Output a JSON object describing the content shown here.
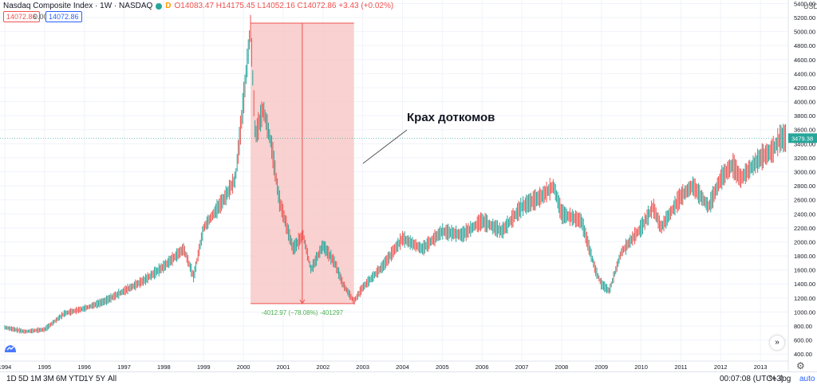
{
  "header": {
    "symbol": "Nasdaq Composite Index · 1W · NASDAQ",
    "badge_d": "D",
    "ohlc": "O14083.47 H14175.45 L14052.16 C14072.86 +3.43 (+0.02%)",
    "sell_price": "14072.86",
    "spread": "0.00",
    "buy_price": "14072.86"
  },
  "annotation": {
    "text": "Крах доткомов",
    "measure": "-4012.97 (−78.08%) -401297"
  },
  "price_label": "3479.38",
  "currency": "USD",
  "bottom": {
    "ranges": [
      "1D",
      "5D",
      "1M",
      "3M",
      "6M",
      "YTD",
      "1Y",
      "5Y",
      "All"
    ],
    "time": "00:07:08 (UTC+3)",
    "pct": "%",
    "log": "log",
    "auto": "auto"
  },
  "colors": {
    "up": "#26a69a",
    "down": "#ef5350",
    "zone_fill": "#f7c9c8",
    "zone_line": "#ef5350",
    "price_tag": "#26a69a",
    "measure_text": "#4caf50",
    "grid": "#f0f3fa"
  },
  "chart_data": {
    "type": "line",
    "title": "Nasdaq Composite Index · 1W · NASDAQ",
    "x_ticks": [
      "1994",
      "1995",
      "1996",
      "1997",
      "1998",
      "1999",
      "2000",
      "2001",
      "2002",
      "2003",
      "2004",
      "2005",
      "2006",
      "2007",
      "2008",
      "2009",
      "2010",
      "2011",
      "2012",
      "2013"
    ],
    "y_ticks": [
      400,
      600,
      800,
      1000,
      1200,
      1400,
      1600,
      1800,
      2000,
      2200,
      2400,
      2600,
      2800,
      3000,
      3200,
      3400,
      3600,
      3800,
      4000,
      4200,
      4400,
      4600,
      4800,
      5000,
      5200,
      5400
    ],
    "ylim": [
      300,
      5450
    ],
    "series": [
      {
        "x": [
          1994.0,
          1994.5,
          1995.0,
          1995.5,
          1996.0,
          1996.5,
          1997.0,
          1997.5,
          1998.0,
          1998.5,
          1998.75,
          1999.0,
          1999.5,
          1999.8,
          2000.0,
          2000.18,
          2000.3,
          2000.5,
          2000.7,
          2000.9,
          2001.0,
          2001.25,
          2001.5,
          2001.7,
          2002.0,
          2002.3,
          2002.5,
          2002.78,
          2003.0,
          2003.5,
          2004.0,
          2004.5,
          2005.0,
          2005.5,
          2006.0,
          2006.5,
          2007.0,
          2007.5,
          2007.8,
          2008.0,
          2008.5,
          2008.85,
          2009.0,
          2009.2,
          2009.5,
          2010.0,
          2010.3,
          2010.5,
          2011.0,
          2011.3,
          2011.7,
          2012.0,
          2012.3,
          2012.5,
          2013.0,
          2013.3,
          2013.5
        ],
        "y": [
          780,
          720,
          750,
          980,
          1050,
          1150,
          1300,
          1450,
          1650,
          1900,
          1500,
          2200,
          2600,
          2900,
          4000,
          5050,
          3500,
          3900,
          3400,
          2600,
          2400,
          1900,
          2100,
          1600,
          1950,
          1700,
          1400,
          1150,
          1350,
          1650,
          2050,
          1900,
          2150,
          2100,
          2300,
          2150,
          2500,
          2650,
          2800,
          2400,
          2300,
          1600,
          1400,
          1300,
          1850,
          2200,
          2500,
          2200,
          2650,
          2800,
          2500,
          2900,
          3100,
          2900,
          3200,
          3300,
          3480
        ]
      }
    ],
    "zone": {
      "x_from": 2000.18,
      "x_to": 2002.78,
      "y_from": 5120,
      "y_to": 1120
    },
    "last_value": 3479.38,
    "log_scale": false,
    "grid": true
  }
}
